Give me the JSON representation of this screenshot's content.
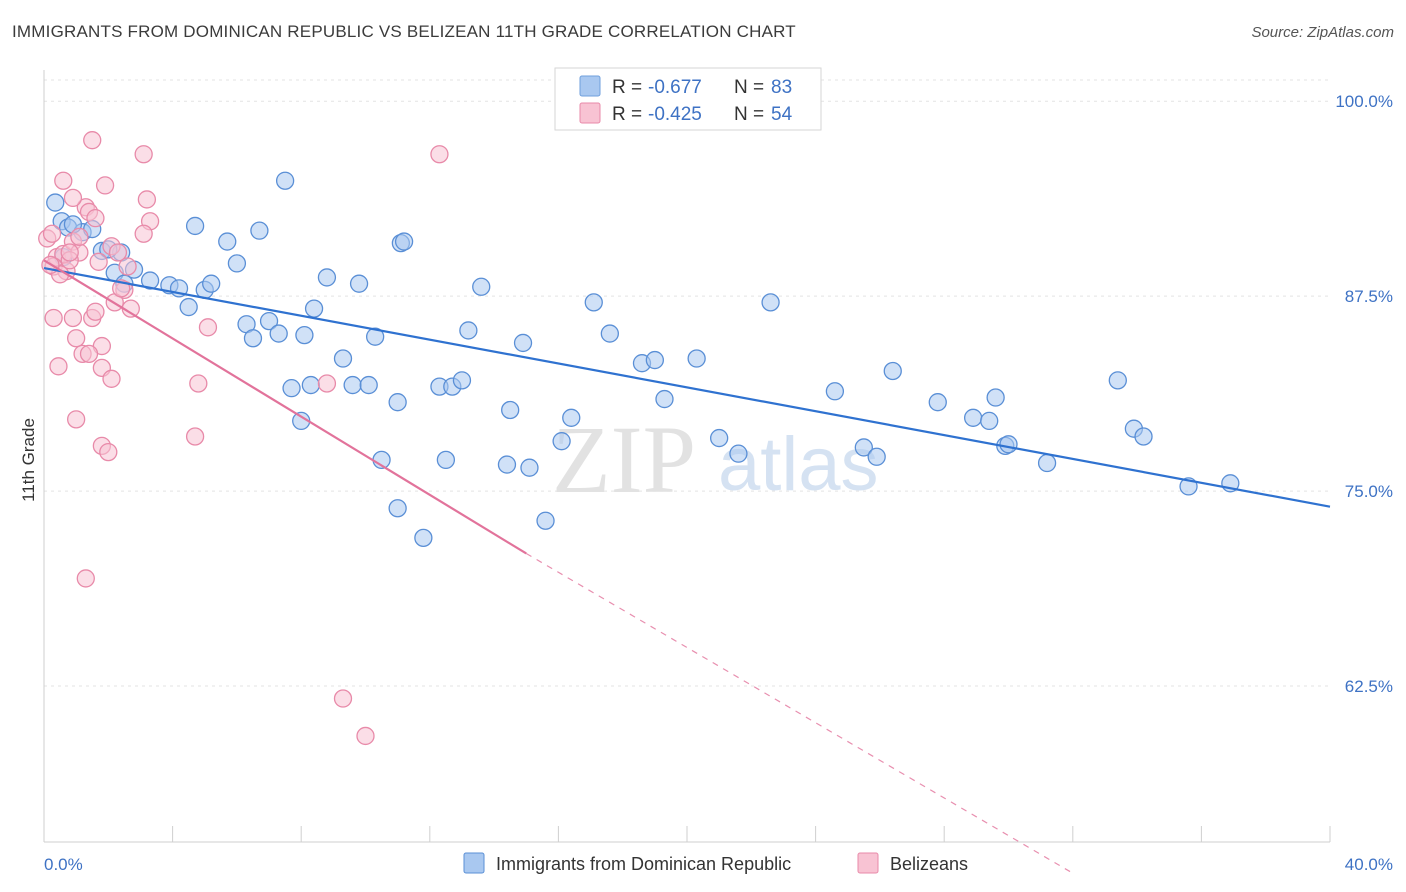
{
  "title": "IMMIGRANTS FROM DOMINICAN REPUBLIC VS BELIZEAN 11TH GRADE CORRELATION CHART",
  "source": "Source: ZipAtlas.com",
  "watermark": {
    "zip": "ZIP",
    "atlas": "atlas"
  },
  "chart_data": {
    "type": "scatter",
    "ylabel": "11th Grade",
    "xlim": [
      0,
      40
    ],
    "ylim": [
      52.5,
      102
    ],
    "x_tick_labels": [
      {
        "value": 0,
        "label": "0.0%"
      },
      {
        "value": 40,
        "label": "40.0%"
      }
    ],
    "y_tick_labels": [
      {
        "value": 100,
        "label": "100.0%"
      },
      {
        "value": 87.5,
        "label": "87.5%"
      },
      {
        "value": 75,
        "label": "75.0%"
      },
      {
        "value": 62.5,
        "label": "62.5%"
      }
    ],
    "grid": true,
    "legend": {
      "position": "top-center",
      "rows": [
        {
          "r_label": "R =",
          "r_value": "-0.677",
          "n_label": "N =",
          "n_value": "83",
          "color": "#a9c8f0",
          "stroke": "#6f9fdc"
        },
        {
          "r_label": "R =",
          "r_value": "-0.425",
          "n_label": "N =",
          "n_value": "54",
          "color": "#f8c3d3",
          "stroke": "#e88aa9"
        }
      ]
    },
    "series": [
      {
        "name": "Immigrants from Dominican Republic",
        "color": "#a9c8f0",
        "stroke": "#5a8fd6",
        "line_color": "#2f72d0",
        "trend": {
          "x0": 0,
          "y0": 89.3,
          "x1": 40,
          "y1": 74.0
        },
        "points": [
          [
            0.35,
            93.5
          ],
          [
            0.55,
            92.3
          ],
          [
            0.75,
            91.9
          ],
          [
            1.2,
            91.6
          ],
          [
            1.5,
            91.8
          ],
          [
            0.9,
            92.1
          ],
          [
            1.8,
            90.4
          ],
          [
            2.4,
            90.3
          ],
          [
            2.2,
            89.0
          ],
          [
            2.8,
            89.2
          ],
          [
            3.3,
            88.5
          ],
          [
            2.5,
            88.3
          ],
          [
            3.9,
            88.2
          ],
          [
            4.2,
            88.0
          ],
          [
            4.5,
            86.8
          ],
          [
            5.0,
            87.9
          ],
          [
            5.2,
            88.3
          ],
          [
            4.7,
            92.0
          ],
          [
            5.7,
            91.0
          ],
          [
            6.0,
            89.6
          ],
          [
            6.7,
            91.7
          ],
          [
            7.5,
            94.9
          ],
          [
            6.3,
            85.7
          ],
          [
            6.5,
            84.8
          ],
          [
            7.0,
            85.9
          ],
          [
            7.3,
            85.1
          ],
          [
            8.1,
            85.0
          ],
          [
            8.8,
            88.7
          ],
          [
            8.4,
            86.7
          ],
          [
            9.8,
            88.3
          ],
          [
            9.3,
            83.5
          ],
          [
            10.3,
            84.9
          ],
          [
            7.7,
            81.6
          ],
          [
            8.3,
            81.8
          ],
          [
            9.6,
            81.8
          ],
          [
            10.1,
            81.8
          ],
          [
            11.1,
            90.9
          ],
          [
            11.2,
            91.0
          ],
          [
            11.0,
            80.7
          ],
          [
            8.0,
            79.5
          ],
          [
            10.5,
            77.0
          ],
          [
            11.0,
            73.9
          ],
          [
            12.3,
            81.7
          ],
          [
            12.7,
            81.7
          ],
          [
            13.0,
            82.1
          ],
          [
            13.2,
            85.3
          ],
          [
            13.6,
            88.1
          ],
          [
            12.5,
            77.0
          ],
          [
            11.8,
            72.0
          ],
          [
            14.5,
            80.2
          ],
          [
            14.9,
            84.5
          ],
          [
            14.4,
            76.7
          ],
          [
            15.1,
            76.5
          ],
          [
            15.6,
            73.1
          ],
          [
            16.1,
            78.2
          ],
          [
            16.4,
            79.7
          ],
          [
            17.1,
            87.1
          ],
          [
            17.6,
            85.1
          ],
          [
            18.6,
            83.2
          ],
          [
            19.0,
            83.4
          ],
          [
            19.3,
            80.9
          ],
          [
            20.3,
            83.5
          ],
          [
            21.0,
            78.4
          ],
          [
            21.6,
            77.4
          ],
          [
            22.6,
            87.1
          ],
          [
            24.6,
            81.4
          ],
          [
            25.5,
            77.8
          ],
          [
            25.9,
            77.2
          ],
          [
            26.4,
            82.7
          ],
          [
            27.8,
            80.7
          ],
          [
            28.9,
            79.7
          ],
          [
            29.4,
            79.5
          ],
          [
            29.6,
            81.0
          ],
          [
            29.9,
            77.9
          ],
          [
            30.0,
            78.0
          ],
          [
            31.2,
            76.8
          ],
          [
            33.4,
            82.1
          ],
          [
            33.9,
            79.0
          ],
          [
            34.2,
            78.5
          ],
          [
            35.6,
            75.3
          ],
          [
            36.9,
            75.5
          ],
          [
            2.0,
            90.5
          ],
          [
            0.6,
            90.0
          ]
        ]
      },
      {
        "name": "Belizeans",
        "color": "#f8c3d3",
        "stroke": "#e88aa9",
        "line_color": "#e2739b",
        "trend": {
          "x0": 0,
          "y0": 89.8,
          "x1": 15.0,
          "y1": 71.0,
          "dash_x1": 32.0,
          "dash_y1": 50.5
        },
        "points": [
          [
            0.1,
            91.2
          ],
          [
            0.25,
            91.5
          ],
          [
            0.4,
            90.0
          ],
          [
            0.6,
            90.2
          ],
          [
            0.3,
            89.4
          ],
          [
            0.7,
            89.1
          ],
          [
            0.9,
            91.0
          ],
          [
            1.1,
            90.3
          ],
          [
            0.5,
            88.9
          ],
          [
            0.8,
            89.8
          ],
          [
            1.3,
            93.2
          ],
          [
            1.4,
            92.9
          ],
          [
            1.6,
            92.5
          ],
          [
            0.6,
            94.9
          ],
          [
            0.9,
            93.8
          ],
          [
            1.5,
            97.5
          ],
          [
            1.9,
            94.6
          ],
          [
            2.1,
            90.7
          ],
          [
            2.3,
            90.3
          ],
          [
            2.5,
            87.9
          ],
          [
            2.6,
            89.4
          ],
          [
            3.1,
            96.6
          ],
          [
            3.2,
            93.7
          ],
          [
            3.3,
            92.3
          ],
          [
            3.1,
            91.5
          ],
          [
            0.3,
            86.1
          ],
          [
            0.9,
            86.1
          ],
          [
            1.0,
            84.8
          ],
          [
            1.5,
            86.1
          ],
          [
            1.6,
            86.5
          ],
          [
            1.8,
            84.3
          ],
          [
            2.2,
            87.1
          ],
          [
            2.7,
            86.7
          ],
          [
            1.2,
            83.8
          ],
          [
            1.4,
            83.8
          ],
          [
            1.8,
            82.9
          ],
          [
            2.1,
            82.2
          ],
          [
            0.45,
            83.0
          ],
          [
            1.0,
            79.6
          ],
          [
            1.8,
            77.9
          ],
          [
            2.0,
            77.5
          ],
          [
            4.8,
            81.9
          ],
          [
            4.7,
            78.5
          ],
          [
            5.1,
            85.5
          ],
          [
            8.8,
            81.9
          ],
          [
            12.3,
            96.6
          ],
          [
            9.3,
            61.7
          ],
          [
            10.0,
            59.3
          ],
          [
            1.3,
            69.4
          ],
          [
            1.1,
            91.3
          ],
          [
            0.2,
            89.5
          ],
          [
            1.7,
            89.7
          ],
          [
            0.8,
            90.3
          ],
          [
            2.4,
            88.0
          ]
        ]
      }
    ]
  }
}
